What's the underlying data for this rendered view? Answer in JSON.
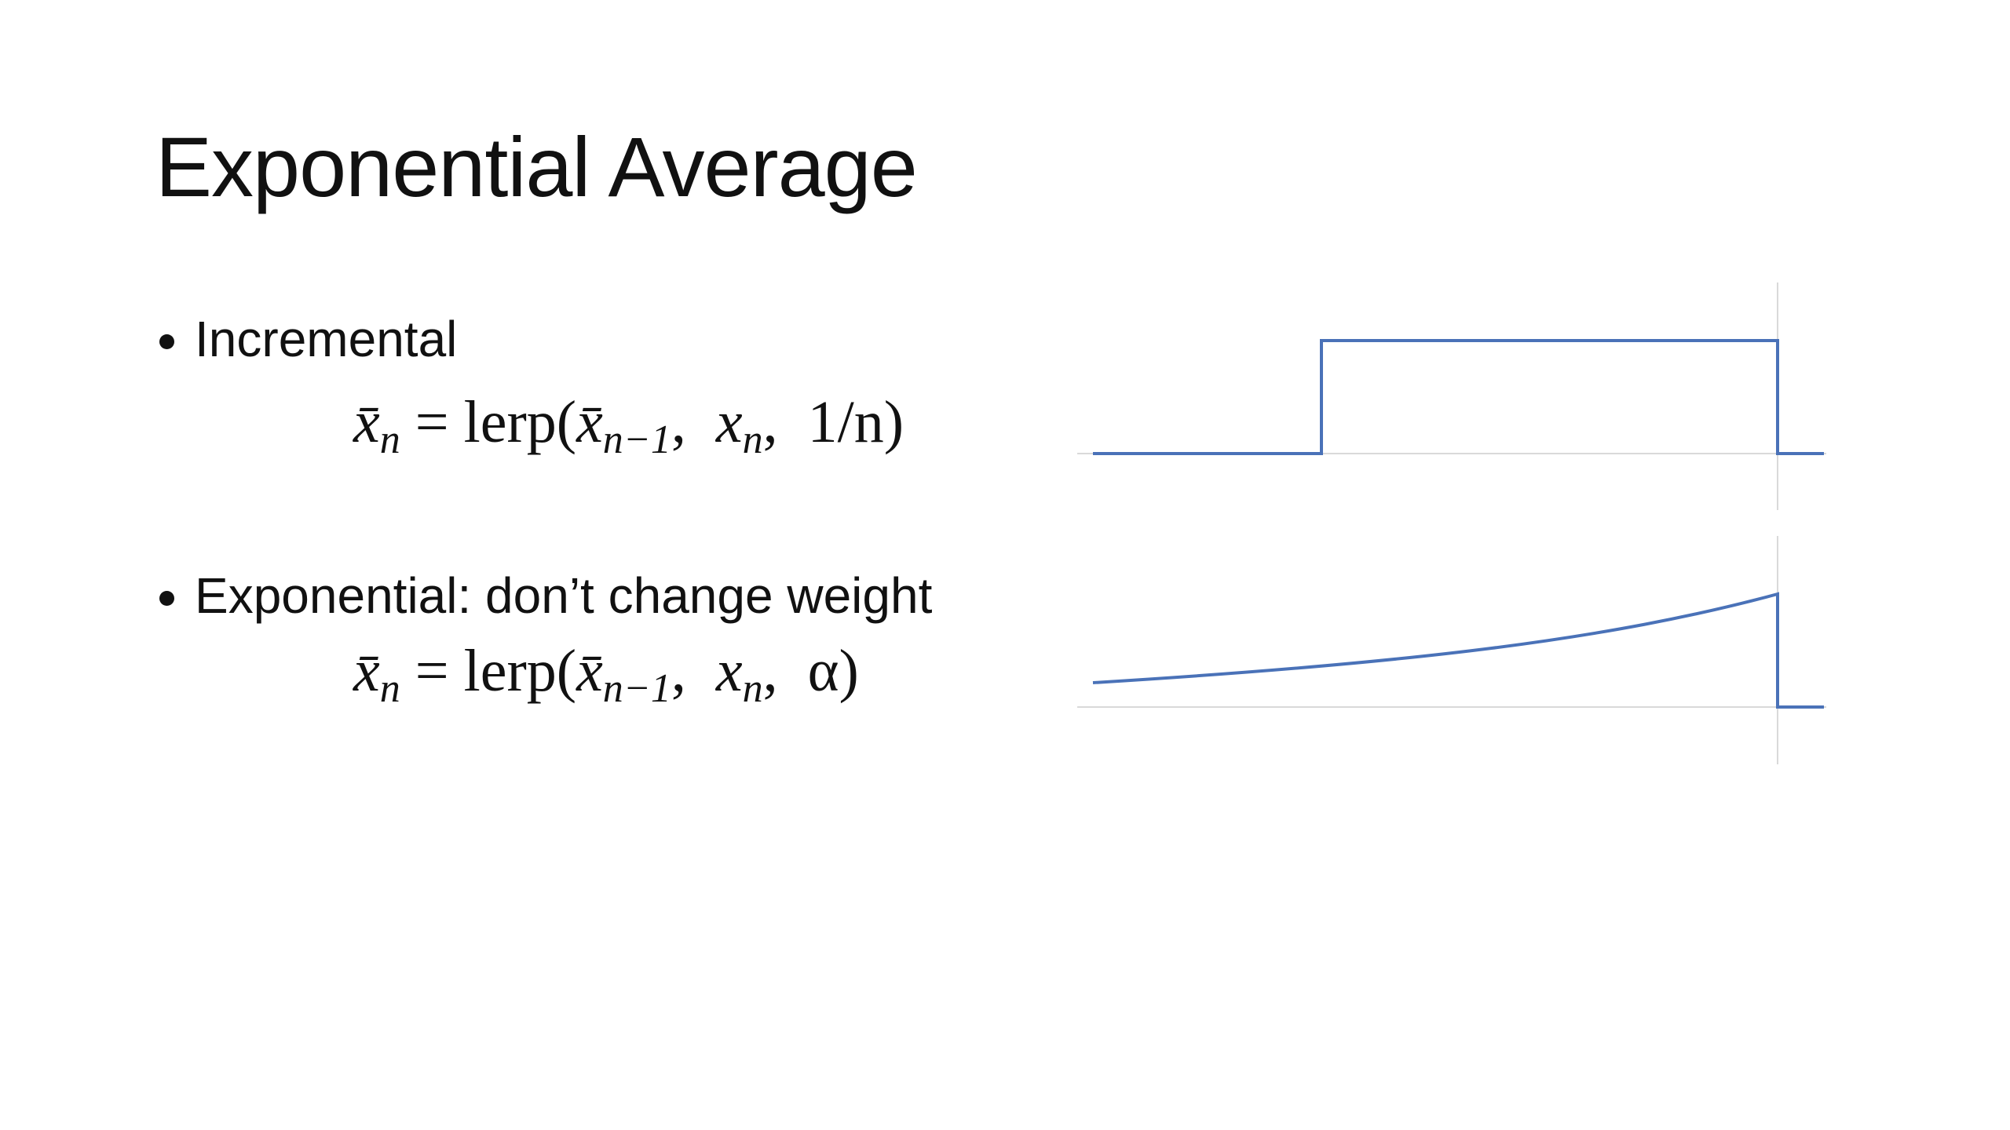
{
  "slide": {
    "title": "Exponential Average",
    "items": [
      {
        "label": "Incremental",
        "formula": [
          {
            "text": "x̄",
            "sub": "n"
          },
          {
            "text": " = lerp("
          },
          {
            "text": "x̄",
            "sub": "n−1"
          },
          {
            "text": ",  "
          },
          {
            "text": "x",
            "sub": "n"
          },
          {
            "text": ",  1/n)"
          }
        ]
      },
      {
        "label": "Exponential: don’t change weight",
        "formula": [
          {
            "text": "x̄",
            "sub": "n"
          },
          {
            "text": " = lerp("
          },
          {
            "text": "x̄",
            "sub": "n−1"
          },
          {
            "text": ",  "
          },
          {
            "text": "x",
            "sub": "n"
          },
          {
            "text": ",  α)"
          }
        ]
      }
    ]
  }
}
